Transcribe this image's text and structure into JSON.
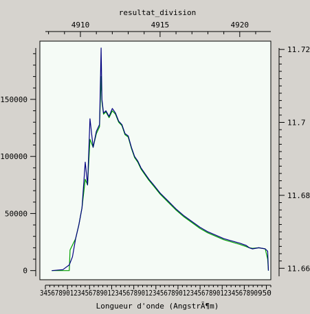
{
  "chart_data": {
    "type": "line",
    "title": "resultat_division",
    "xlabel": "Longueur d'onde (AngstrÃ¶m)",
    "ylabel": "",
    "bottom_tick_labels": "3456789012345678901234567890123456789012345678901234567890",
    "bottom_tick_count": 51,
    "bottom_first_label": "34",
    "bottom_last_label": "950",
    "bottom_range": [
      34,
      950
    ],
    "top_axis": {
      "ticks": [
        4910,
        4915,
        4920
      ],
      "range": [
        4907.8,
        4921.95
      ]
    },
    "left_axis": {
      "ticks": [
        0,
        50000,
        100000,
        150000
      ],
      "range": [
        -5000,
        195000
      ]
    },
    "right_axis": {
      "ticks": [
        11.66,
        11.68,
        11.7,
        11.72
      ],
      "range": [
        11.6578,
        11.7204
      ],
      "tick_labels": [
        "11.66",
        "11.68",
        "11.7",
        "11.72"
      ]
    },
    "series": [
      {
        "color": "#00007f",
        "x": [
          4908.2,
          4908.9,
          4909.3,
          4909.5,
          4909.7,
          4909.9,
          4910.1,
          4910.3,
          4910.45,
          4910.6,
          4910.8,
          4911.0,
          4911.2,
          4911.3,
          4911.35,
          4911.45,
          4911.6,
          4911.8,
          4912.0,
          4912.2,
          4912.4,
          4912.6,
          4912.8,
          4913.0,
          4913.2,
          4913.4,
          4913.6,
          4913.8,
          4914.0,
          4914.3,
          4914.6,
          4915.0,
          4915.5,
          4916.0,
          4916.5,
          4917.0,
          4917.5,
          4918.0,
          4918.5,
          4919.0,
          4919.5,
          4920.0,
          4920.4,
          4920.6,
          4920.8,
          4921.2,
          4921.6,
          4921.75,
          4921.8
        ],
        "values": [
          0,
          800,
          5000,
          12000,
          28000,
          40000,
          55000,
          95000,
          75000,
          133000,
          108000,
          122000,
          128000,
          195000,
          150000,
          138000,
          140000,
          135000,
          142000,
          138000,
          131000,
          128000,
          120000,
          118000,
          108000,
          100000,
          96000,
          90000,
          86000,
          80000,
          75000,
          68000,
          61000,
          54000,
          48000,
          43000,
          38000,
          34000,
          31000,
          28000,
          26000,
          24000,
          22000,
          20000,
          19000,
          20000,
          19000,
          17000,
          0
        ]
      },
      {
        "color": "#00a000",
        "x": [
          4908.2,
          4909.3,
          4909.35,
          4909.7,
          4909.9,
          4910.1,
          4910.3,
          4910.45,
          4910.6,
          4910.8,
          4911.0,
          4911.2,
          4911.3,
          4911.35,
          4911.45,
          4911.6,
          4911.8,
          4912.0,
          4912.2,
          4912.4,
          4912.6,
          4912.8,
          4913.0,
          4913.2,
          4913.4,
          4913.6,
          4913.8,
          4914.0,
          4914.3,
          4914.6,
          4915.0,
          4915.5,
          4916.0,
          4916.5,
          4917.0,
          4917.5,
          4918.0,
          4918.5,
          4919.0,
          4919.5,
          4920.0,
          4920.4,
          4920.6,
          4920.8,
          4921.2,
          4921.6,
          4921.75,
          4921.8
        ],
        "values": [
          0,
          0,
          18000,
          28000,
          40000,
          55000,
          80000,
          75000,
          115000,
          108000,
          120000,
          126000,
          170000,
          148000,
          137000,
          139000,
          134000,
          140000,
          137000,
          130000,
          127000,
          119000,
          117000,
          107000,
          99000,
          95000,
          89000,
          85000,
          79000,
          74000,
          67000,
          60000,
          53000,
          47000,
          42000,
          37000,
          33000,
          30000,
          27000,
          25000,
          23000,
          21000,
          20000,
          19500,
          20000,
          19000,
          10000,
          0
        ]
      }
    ]
  }
}
